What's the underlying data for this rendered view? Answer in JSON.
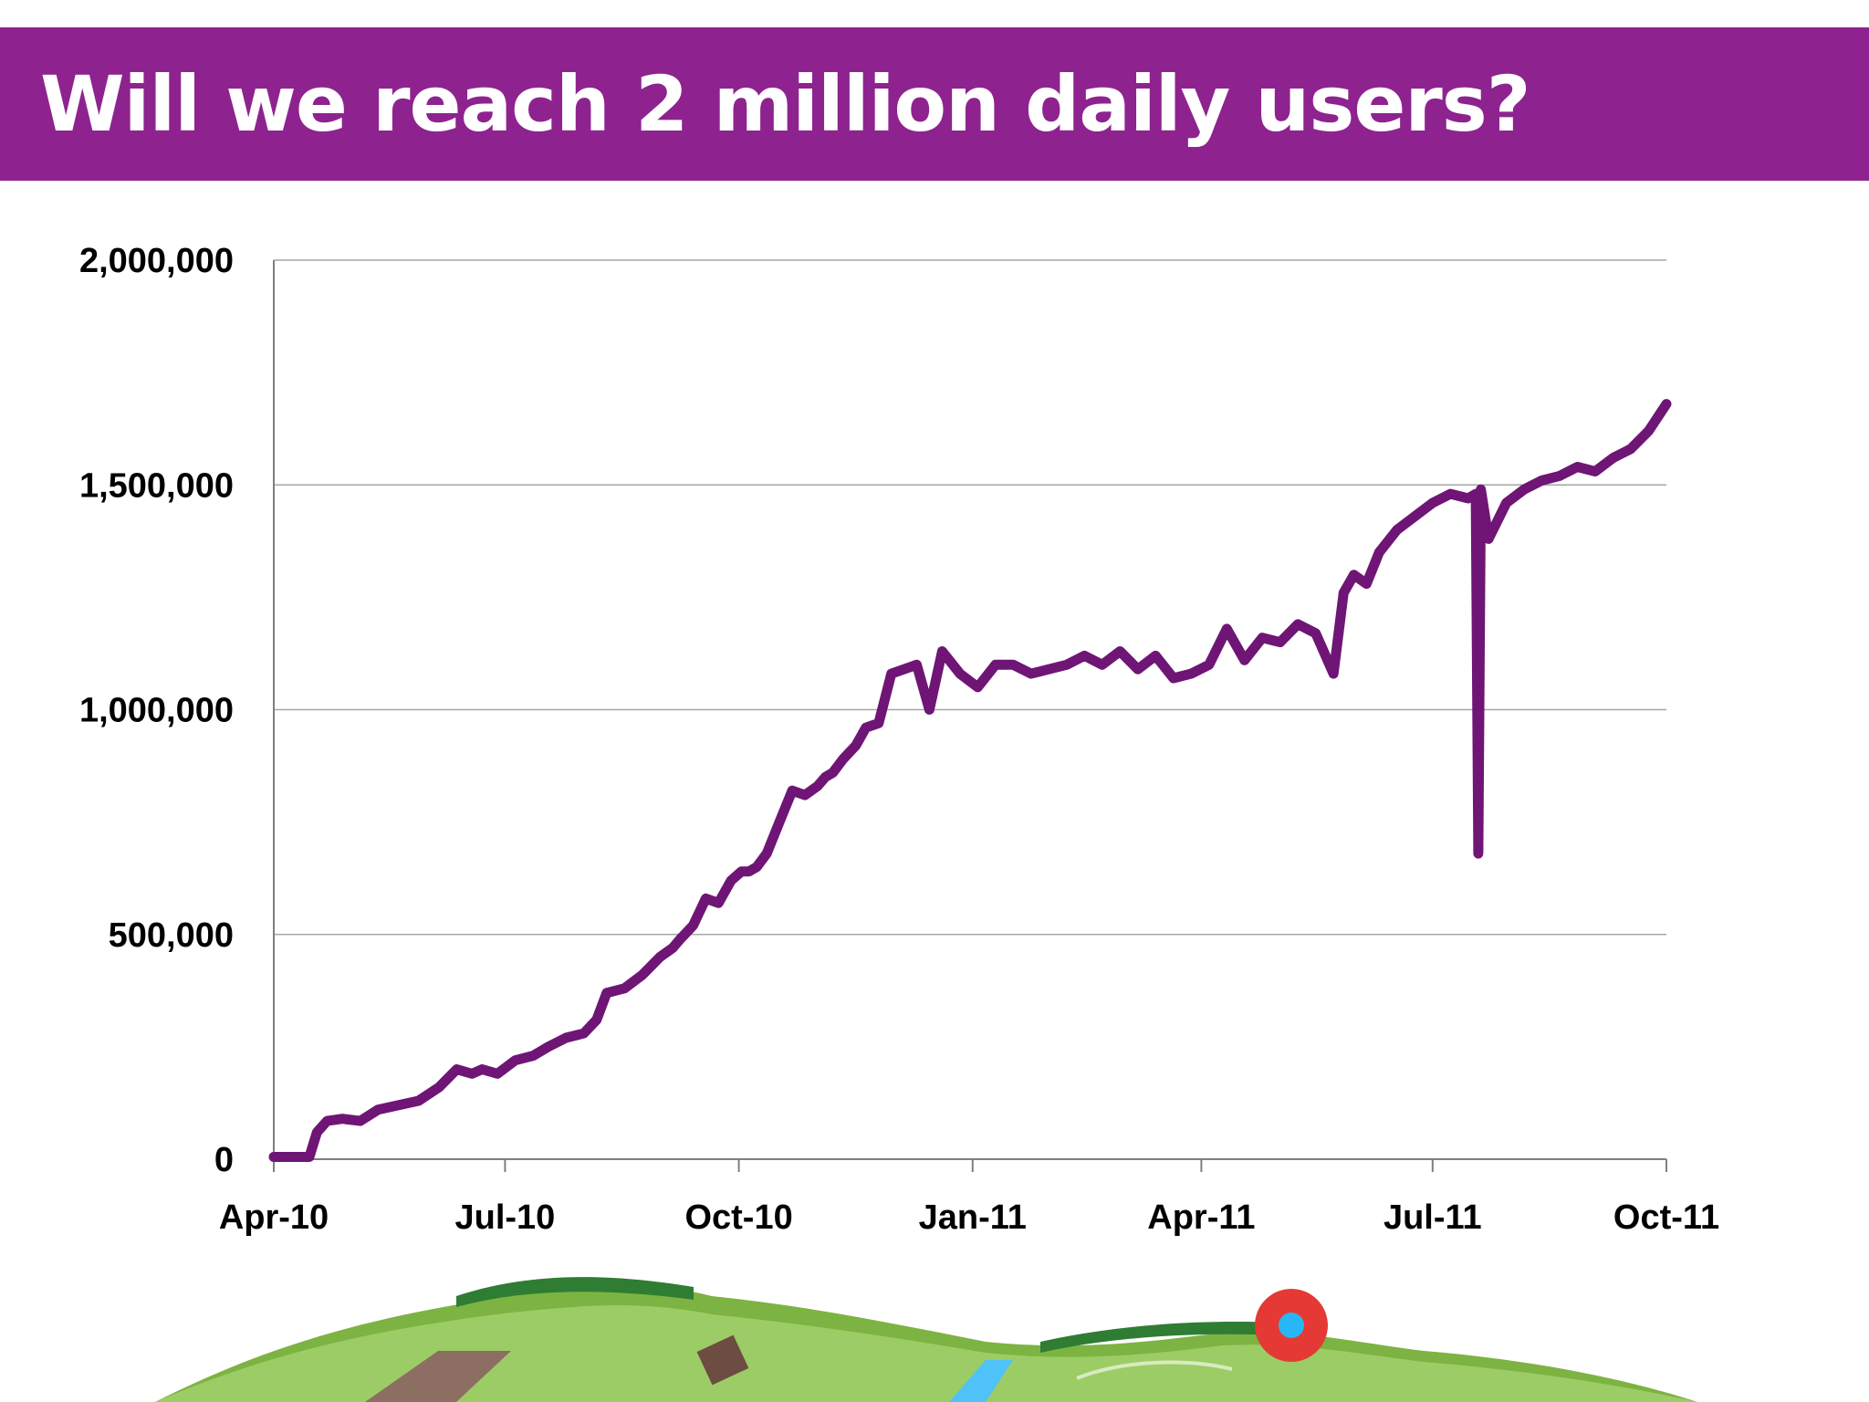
{
  "slide": {
    "title": "Will we reach 2 million daily users?"
  },
  "colors": {
    "title_bar": "#8e2390",
    "line": "#6f1576",
    "grid": "#a6a6a6",
    "axis": "#7f7f7f"
  },
  "illustration": {
    "icon": "farm-landscape-icon"
  },
  "chart_data": {
    "type": "line",
    "title": "",
    "xlabel": "",
    "ylabel": "",
    "ylim": [
      0,
      2000000
    ],
    "xlim": [
      "2010-04-01",
      "2011-10-01"
    ],
    "grid": true,
    "legend": "none",
    "y_ticks": [
      {
        "value": 0,
        "label": "0"
      },
      {
        "value": 500000,
        "label": "500,000"
      },
      {
        "value": 1000000,
        "label": "1,000,000"
      },
      {
        "value": 1500000,
        "label": "1,500,000"
      },
      {
        "value": 2000000,
        "label": "2,000,000"
      }
    ],
    "x_ticks": [
      {
        "date": "2010-04-01",
        "label": "Apr-10"
      },
      {
        "date": "2010-07-01",
        "label": "Jul-10"
      },
      {
        "date": "2010-10-01",
        "label": "Oct-10"
      },
      {
        "date": "2011-01-01",
        "label": "Jan-11"
      },
      {
        "date": "2011-04-01",
        "label": "Apr-11"
      },
      {
        "date": "2011-07-01",
        "label": "Jul-11"
      },
      {
        "date": "2011-10-01",
        "label": "Oct-11"
      }
    ],
    "series": [
      {
        "x": [
          "2010-04-01",
          "2010-04-15",
          "2010-04-18",
          "2010-04-22",
          "2010-04-28",
          "2010-05-05",
          "2010-05-12",
          "2010-05-20",
          "2010-05-28",
          "2010-06-05",
          "2010-06-12",
          "2010-06-18",
          "2010-06-22",
          "2010-06-28",
          "2010-07-05",
          "2010-07-12",
          "2010-07-18",
          "2010-07-25",
          "2010-08-01",
          "2010-08-06",
          "2010-08-10",
          "2010-08-17",
          "2010-08-24",
          "2010-08-31",
          "2010-09-05",
          "2010-09-08",
          "2010-09-13",
          "2010-09-18",
          "2010-09-23",
          "2010-09-28",
          "2010-10-02",
          "2010-10-05",
          "2010-10-08",
          "2010-10-12",
          "2010-10-17",
          "2010-10-22",
          "2010-10-27",
          "2010-11-01",
          "2010-11-04",
          "2010-11-07",
          "2010-11-11",
          "2010-11-16",
          "2010-11-20",
          "2010-11-25",
          "2010-11-30",
          "2010-12-05",
          "2010-12-10",
          "2010-12-15",
          "2010-12-20",
          "2010-12-27",
          "2011-01-03",
          "2011-01-10",
          "2011-01-17",
          "2011-01-24",
          "2011-01-31",
          "2011-02-07",
          "2011-02-14",
          "2011-02-21",
          "2011-02-28",
          "2011-03-07",
          "2011-03-14",
          "2011-03-21",
          "2011-03-28",
          "2011-04-04",
          "2011-04-11",
          "2011-04-18",
          "2011-04-25",
          "2011-05-02",
          "2011-05-09",
          "2011-05-16",
          "2011-05-23",
          "2011-05-27",
          "2011-05-31",
          "2011-06-05",
          "2011-06-10",
          "2011-06-17",
          "2011-06-24",
          "2011-07-01",
          "2011-07-08",
          "2011-07-15",
          "2011-07-18",
          "2011-07-19",
          "2011-07-20",
          "2011-07-23",
          "2011-07-30",
          "2011-08-06",
          "2011-08-13",
          "2011-08-20",
          "2011-08-27",
          "2011-09-03",
          "2011-09-10",
          "2011-09-17",
          "2011-09-24",
          "2011-10-01"
        ],
        "y": [
          5000,
          5000,
          60000,
          85000,
          90000,
          85000,
          110000,
          120000,
          130000,
          160000,
          200000,
          190000,
          200000,
          190000,
          220000,
          230000,
          250000,
          270000,
          280000,
          310000,
          370000,
          380000,
          410000,
          450000,
          470000,
          490000,
          520000,
          580000,
          570000,
          620000,
          640000,
          640000,
          650000,
          680000,
          750000,
          820000,
          810000,
          830000,
          850000,
          860000,
          890000,
          920000,
          960000,
          970000,
          1080000,
          1090000,
          1100000,
          1000000,
          1130000,
          1080000,
          1050000,
          1100000,
          1100000,
          1080000,
          1090000,
          1100000,
          1120000,
          1100000,
          1130000,
          1090000,
          1120000,
          1070000,
          1080000,
          1100000,
          1180000,
          1110000,
          1160000,
          1150000,
          1190000,
          1170000,
          1080000,
          1260000,
          1300000,
          1280000,
          1350000,
          1400000,
          1430000,
          1460000,
          1480000,
          1470000,
          1480000,
          680000,
          1490000,
          1380000,
          1460000,
          1490000,
          1510000,
          1520000,
          1540000,
          1530000,
          1560000,
          1580000,
          1620000,
          1680000
        ]
      }
    ]
  }
}
